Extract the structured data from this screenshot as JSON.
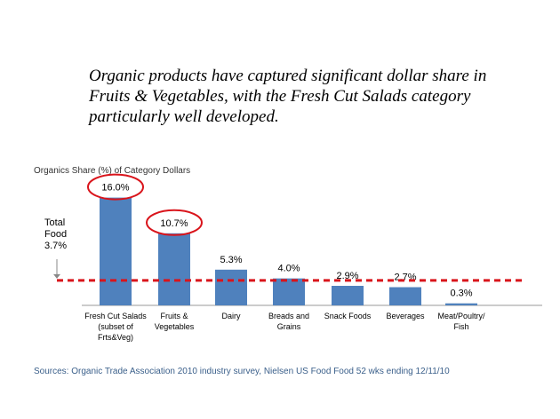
{
  "headline": "Organic products have captured significant dollar share in Fruits & Vegetables, with the Fresh Cut Salads category particularly well developed.",
  "source": "Sources: Organic Trade Association 2010 industry survey, Nielsen US Food Food 52 wks ending 12/11/10",
  "colors": {
    "bar": "#4f81bd",
    "reference_line": "#d9141b",
    "highlight_circle": "#d9141b",
    "axis": "#999999"
  },
  "chart_data": {
    "type": "bar",
    "title": "Organics Share (%) of Category Dollars",
    "categories": [
      [
        "Fresh Cut Salads",
        "(subset of",
        "Frts&Veg)"
      ],
      [
        "Fruits &",
        "Vegetables"
      ],
      [
        "Dairy"
      ],
      [
        "Breads and",
        "Grains"
      ],
      [
        "Snack Foods"
      ],
      [
        "Beverages"
      ],
      [
        "Meat/Poultry/",
        "Fish"
      ]
    ],
    "values": [
      16.0,
      10.7,
      5.3,
      4.0,
      2.9,
      2.7,
      0.3
    ],
    "data_labels": [
      "16.0%",
      "10.7%",
      "5.3%",
      "4.0%",
      "2.9%",
      "2.7%",
      "0.3%"
    ],
    "highlighted": [
      0,
      1
    ],
    "ylim": [
      0,
      17
    ],
    "reference_line": {
      "value": 3.7,
      "label": [
        "Total",
        "Food",
        "3.7%"
      ]
    },
    "grid": false,
    "legend": "none"
  }
}
